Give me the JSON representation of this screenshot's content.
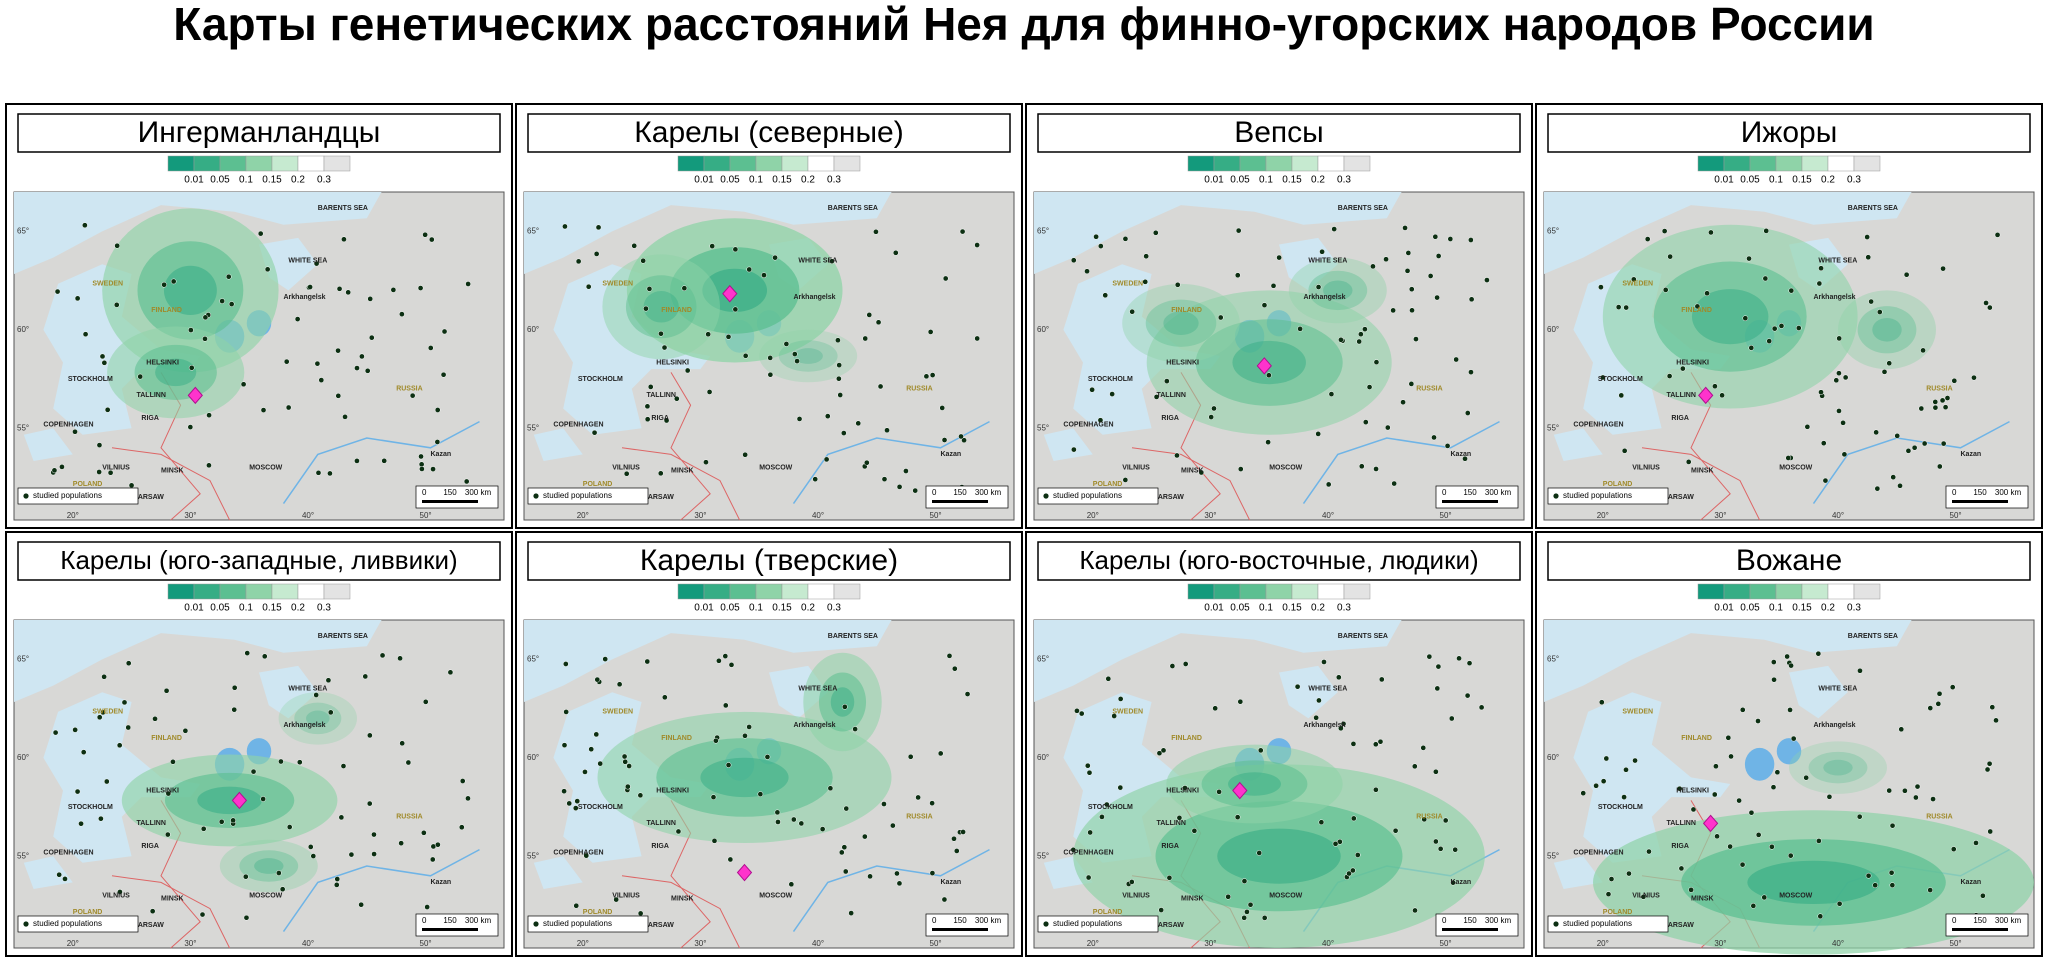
{
  "title": "Карты генетических расстояний Нея для финно-угорских народов России",
  "panels": [
    {
      "title": "Ингерманландцы"
    },
    {
      "title": "Карелы (северные)"
    },
    {
      "title": "Вепсы"
    },
    {
      "title": "Ижоры"
    },
    {
      "title": "Карелы (юго-западные, ливвики)"
    },
    {
      "title": "Карелы (тверские)"
    },
    {
      "title": "Карелы (юго-восточные, людики)"
    },
    {
      "title": "Вожане"
    }
  ],
  "legend": {
    "labels": [
      "0.01",
      "0.05",
      "0.1",
      "0.15",
      "0.2",
      "0.3"
    ],
    "colors": [
      "#139a7c",
      "#36ad85",
      "#5cbf91",
      "#8fd3a8",
      "#c6ead0",
      "#ffffff",
      "#e3e3e3"
    ]
  },
  "map_labels": [
    "BARENTS SEA",
    "WHITE SEA",
    "FINLAND",
    "SWEDEN",
    "RUSSIA",
    "HELSINKI",
    "STOCKHOLM",
    "TALLINN",
    "RIGA",
    "VILNIUS",
    "MINSK",
    "MOSCOW",
    "WARSAW",
    "COPENHAGEN",
    "POLAND",
    "Arkhangelsk",
    "Kazan"
  ],
  "populations_label": "studied populations",
  "scale_labels": [
    "0",
    "150",
    "300 km"
  ],
  "longitude_labels": [
    "20°",
    "30°",
    "40°",
    "50°"
  ],
  "latitude_labels": [
    "55°",
    "60°",
    "65°"
  ]
}
